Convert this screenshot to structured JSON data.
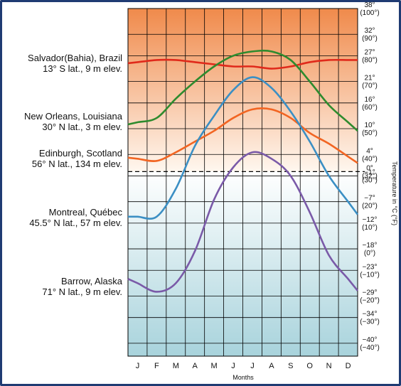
{
  "chart_data": {
    "type": "line",
    "xlabel": "Months",
    "ylabel": "Temperature in °C (°F)",
    "categories": [
      "J",
      "F",
      "M",
      "A",
      "M",
      "J",
      "J",
      "A",
      "S",
      "O",
      "N",
      "D"
    ],
    "ylim": [
      -43,
      38
    ],
    "y_ticks": [
      {
        "c": 38,
        "label_c": "38°",
        "label_f": "(100°)"
      },
      {
        "c": 32,
        "label_c": "32°",
        "label_f": "(90°)"
      },
      {
        "c": 27,
        "label_c": "27°",
        "label_f": "(80°)"
      },
      {
        "c": 21,
        "label_c": "21°",
        "label_f": "(70°)"
      },
      {
        "c": 16,
        "label_c": "16°",
        "label_f": "(60°)"
      },
      {
        "c": 10,
        "label_c": "10°",
        "label_f": "(50°)"
      },
      {
        "c": 4,
        "label_c": "4°",
        "label_f": "(40°)"
      },
      {
        "c": 0,
        "label_c": "0°",
        "label_f": "(32°)"
      },
      {
        "c": -1,
        "label_c": "−1°",
        "label_f": "(30°)"
      },
      {
        "c": -7,
        "label_c": "−7°",
        "label_f": "(20°)"
      },
      {
        "c": -12,
        "label_c": "−12°",
        "label_f": "(10°)"
      },
      {
        "c": -18,
        "label_c": "−18°",
        "label_f": "(0°)"
      },
      {
        "c": -23,
        "label_c": "−23°",
        "label_f": "(−10°)"
      },
      {
        "c": -29,
        "label_c": "−29°",
        "label_f": "(−20°)"
      },
      {
        "c": -34,
        "label_c": "−34°",
        "label_f": "(−30°)"
      },
      {
        "c": -40,
        "label_c": "−40°",
        "label_f": "(−40°)"
      }
    ],
    "freezing_line": 0,
    "grid": true,
    "series": [
      {
        "name": "Salvador(Bahia), Brazil",
        "detail": "13° S lat., 9 m elev.",
        "color": "#e02a1b",
        "values": [
          25.5,
          26,
          26,
          25.5,
          25,
          24.5,
          24.5,
          24,
          24.5,
          25.5,
          26,
          26
        ]
      },
      {
        "name": "New Orleans, Louisiana",
        "detail": "30° N lat., 3 m elev.",
        "color": "#2e8b2e",
        "values": [
          11.5,
          12.5,
          17,
          21,
          24.5,
          27,
          28,
          28,
          26,
          21,
          15.5,
          11.5
        ]
      },
      {
        "name": "Edinburgh, Scotland",
        "detail": "56° N lat., 134 m elev.",
        "color": "#f26522",
        "values": [
          3,
          2.5,
          4.5,
          7,
          9.5,
          12.5,
          14.5,
          14.5,
          12.5,
          9,
          6.5,
          3.5
        ]
      },
      {
        "name": "Montreal, Québec",
        "detail": "45.5° N lat., 57 m elev.",
        "color": "#3b8fc4",
        "values": [
          -10.5,
          -10.5,
          -4,
          6,
          13,
          19,
          22,
          19.5,
          14,
          7,
          -1,
          -7
        ]
      },
      {
        "name": "Barrow, Alaska",
        "detail": "71° N lat., 9 m elev.",
        "color": "#7a5aa8",
        "values": [
          -26,
          -28,
          -26,
          -18.5,
          -6.5,
          1,
          4.5,
          3,
          -1,
          -9.5,
          -19.5,
          -25
        ]
      }
    ]
  },
  "colors": {
    "warm_top": "#f08a4b",
    "warm_bottom": "#fff7ef",
    "cool_top": "#ffffff",
    "cool_bottom": "#a8d3dc",
    "grid": "#000000",
    "frame": "#1f3b73"
  }
}
